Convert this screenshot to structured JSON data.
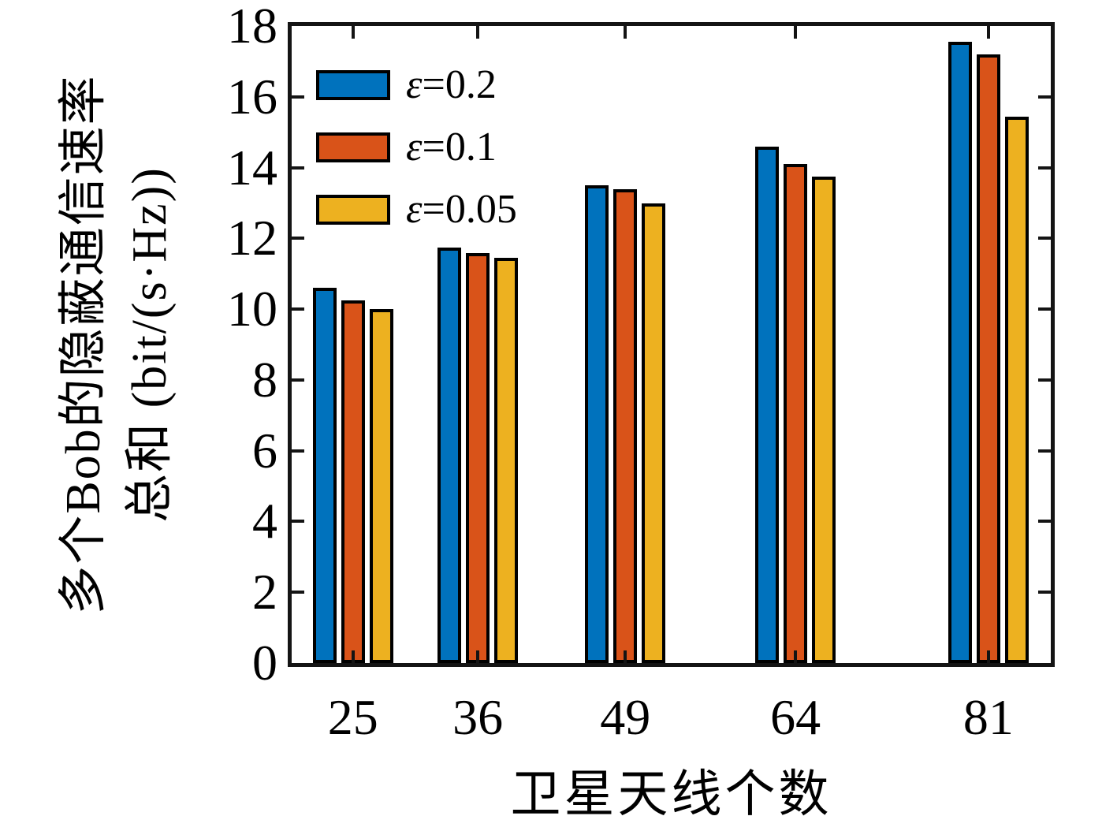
{
  "chart_data": {
    "type": "bar",
    "title": "",
    "categories": [
      "25",
      "36",
      "49",
      "64",
      "81"
    ],
    "x_values": [
      25,
      36,
      49,
      64,
      81
    ],
    "series": [
      {
        "name": "ε=0.2",
        "legend_symbol": "ε",
        "legend_rest": "=0.2",
        "color": "#0072BD",
        "values": [
          10.55,
          11.7,
          13.45,
          14.55,
          17.5
        ]
      },
      {
        "name": "ε=0.1",
        "legend_symbol": "ε",
        "legend_rest": "=0.1",
        "color": "#D95319",
        "values": [
          10.2,
          11.55,
          13.35,
          14.05,
          17.15
        ]
      },
      {
        "name": "ε=0.05",
        "legend_symbol": "ε",
        "legend_rest": "=0.05",
        "color": "#EDB120",
        "values": [
          9.95,
          11.4,
          12.95,
          13.7,
          15.4
        ]
      }
    ],
    "xlabel": "卫星天线个数",
    "ylabel_line1": "多个Bob的隐蔽通信速率",
    "ylabel_line2": "总和 (bit/(s·Hz))",
    "ylim": [
      0,
      18
    ],
    "yticks": [
      0,
      2,
      4,
      6,
      8,
      10,
      12,
      14,
      16,
      18
    ],
    "xlim": [
      19.6,
      86.5
    ],
    "grid": false,
    "legend_position": "top-left-inside",
    "bar_outline_color": "#000000",
    "axis_color": "#141414",
    "background_color": "#ffffff"
  }
}
